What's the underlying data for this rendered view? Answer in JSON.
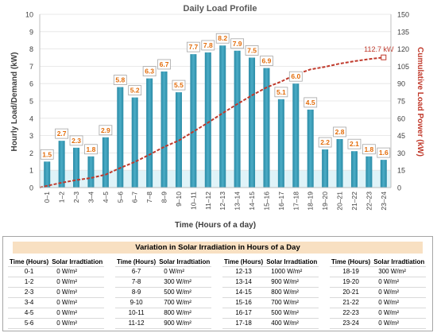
{
  "chart_data": {
    "type": "bar",
    "title": "Daily Load Profile",
    "xlabel": "Time (Hours of a day)",
    "ylabel": "Hourly Load/Demand (kW)",
    "y2label": "Cumulative Load Power (kW)",
    "ylim": [
      0,
      10
    ],
    "y2lim": [
      0,
      150
    ],
    "yticks": [
      "0",
      "1",
      "2",
      "3",
      "4",
      "5",
      "6",
      "7",
      "8",
      "9",
      "10"
    ],
    "y2ticks": [
      "0",
      "15",
      "30",
      "45",
      "60",
      "75",
      "90",
      "105",
      "120",
      "135",
      "150"
    ],
    "categories": [
      "0–1",
      "1–2",
      "2–3",
      "3–4",
      "4–5",
      "5–6",
      "6–7",
      "7–8",
      "8–9",
      "9–10",
      "10–11",
      "11–12",
      "12–13",
      "13–14",
      "14–15",
      "15–16",
      "16–17",
      "17–18",
      "18–19",
      "19–20",
      "20–21",
      "21–22",
      "22–23",
      "23–24"
    ],
    "values": [
      1.5,
      2.7,
      2.3,
      1.8,
      2.9,
      5.8,
      5.2,
      6.3,
      6.7,
      5.5,
      7.7,
      7.8,
      8.2,
      7.9,
      7.5,
      6.9,
      5.1,
      6.0,
      4.5,
      2.2,
      2.8,
      2.1,
      1.8,
      1.6
    ],
    "data_labels": [
      "1.5",
      "2.7",
      "2.3",
      "1.8",
      "2.9",
      "5.8",
      "5.2",
      "6.3",
      "6.7",
      "5.5",
      "7.7",
      "7.8",
      "8.2",
      "7.9",
      "7.5",
      "6.9",
      "5.1",
      "6.0",
      "4.5",
      "2.2",
      "2.8",
      "2.1",
      "1.8",
      "1.6"
    ],
    "cumulative": [
      1.5,
      4.2,
      6.5,
      8.3,
      11.2,
      17.0,
      22.2,
      28.5,
      35.2,
      40.7,
      48.4,
      56.2,
      64.4,
      72.3,
      79.8,
      86.7,
      91.8,
      97.8,
      102.3,
      104.5,
      107.3,
      109.4,
      111.2,
      112.7
    ],
    "cumulative_annotation": "112.7 kW",
    "colors": {
      "bar": "#4bacc6",
      "line": "#c0392b",
      "label": "#e36c09",
      "band": "#dff3f8"
    }
  },
  "irradiation_table": {
    "title": "Variation in Solar Irradiation in Hours of a Day",
    "header_time": "Time (Hours)",
    "header_irr": "Solar Irradtiation",
    "columns": [
      [
        [
          "0-1",
          "0 W/m²"
        ],
        [
          "1-2",
          "0 W/m²"
        ],
        [
          "2-3",
          "0 W/m²"
        ],
        [
          "3-4",
          "0 W/m²"
        ],
        [
          "4-5",
          "0 W/m²"
        ],
        [
          "5-6",
          "0 W/m²"
        ]
      ],
      [
        [
          "6-7",
          "0 W/m²"
        ],
        [
          "7-8",
          "300 W/m²"
        ],
        [
          "8-9",
          "500 W/m²"
        ],
        [
          "9-10",
          "700 W/m²"
        ],
        [
          "10-11",
          "800 W/m²"
        ],
        [
          "11-12",
          "900 W/m²"
        ]
      ],
      [
        [
          "12-13",
          "1000 W/m²"
        ],
        [
          "13-14",
          "900 W/m²"
        ],
        [
          "14-15",
          "800 W/m²"
        ],
        [
          "15-16",
          "700 W/m²"
        ],
        [
          "16-17",
          "500 W/m²"
        ],
        [
          "17-18",
          "400 W/m²"
        ]
      ],
      [
        [
          "18-19",
          "300 W/m²"
        ],
        [
          "19-20",
          "0 W/m²"
        ],
        [
          "20-21",
          "0 W/m²"
        ],
        [
          "21-22",
          "0 W/m²"
        ],
        [
          "22-23",
          "0 W/m²"
        ],
        [
          "23-24",
          "0 W/m²"
        ]
      ]
    ]
  }
}
